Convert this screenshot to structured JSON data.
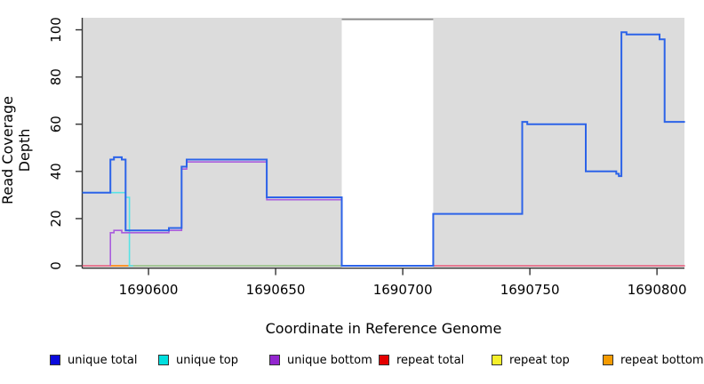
{
  "figure": {
    "background": "#ffffff",
    "panel_bg": "#dcdcdc",
    "axis_color": "#333333",
    "text_color": "#000000"
  },
  "chart_data": {
    "type": "line",
    "subtype": "step-coverage",
    "title": "",
    "xlabel": "Coordinate in Reference Genome",
    "ylabel": "Read Coverage Depth",
    "xlim": [
      1690574.1,
      1690810.8
    ],
    "ylim": [
      -0.75,
      105.1
    ],
    "xticks": [
      1690600,
      1690650,
      1690700,
      1690750,
      1690800
    ],
    "yticks": [
      0,
      20,
      40,
      60,
      80,
      100
    ],
    "grid": false,
    "legend_position": "bottom",
    "masked_region": {
      "x_start": 1690676,
      "x_end": 1690712,
      "fill": "#ffffff",
      "cap_value": 104.5,
      "cap_color": "#8c8c8c"
    },
    "series": [
      {
        "id": "repeat-total",
        "name": "repeat total",
        "color": "#e8587a",
        "width": 1.6,
        "points": [
          [
            1690574,
            0
          ],
          [
            1690811,
            0
          ]
        ]
      },
      {
        "id": "unique-top-repeat-top-overlap",
        "name": "unique top / repeat top overlap at zero",
        "color": "#8fd48f",
        "width": 1.6,
        "points": [
          [
            1690592,
            0
          ],
          [
            1690676,
            0
          ]
        ]
      },
      {
        "id": "repeat-bottom",
        "name": "repeat bottom",
        "color": "#ff9519",
        "width": 1.8,
        "points": [
          [
            1690585,
            0
          ],
          [
            1690592,
            0
          ]
        ]
      },
      {
        "id": "unique-top",
        "name": "unique top",
        "color": "#57e3e6",
        "width": 1.6,
        "points": [
          [
            1690574,
            31
          ],
          [
            1690591,
            31
          ],
          [
            1690591,
            29
          ],
          [
            1690592.5,
            29
          ],
          [
            1690592.5,
            0
          ],
          [
            1690594,
            0
          ]
        ]
      },
      {
        "id": "unique-bottom",
        "name": "unique bottom",
        "color": "#a95ddd",
        "width": 1.6,
        "points": [
          [
            1690585,
            0
          ],
          [
            1690585,
            14
          ],
          [
            1690586.4,
            14
          ],
          [
            1690586.4,
            15
          ],
          [
            1690589.5,
            15
          ],
          [
            1690589.5,
            14
          ],
          [
            1690608,
            14
          ],
          [
            1690608,
            15
          ],
          [
            1690613,
            15
          ],
          [
            1690613,
            41
          ],
          [
            1690615,
            41
          ],
          [
            1690615,
            44
          ],
          [
            1690646.5,
            44
          ],
          [
            1690646.5,
            28
          ],
          [
            1690676,
            28
          ],
          [
            1690676,
            0
          ],
          [
            1690712,
            0
          ]
        ]
      },
      {
        "id": "unique-total",
        "name": "unique total",
        "color": "#2c63e8",
        "width": 2,
        "points": [
          [
            1690574,
            31
          ],
          [
            1690585,
            31
          ],
          [
            1690585,
            45
          ],
          [
            1690586.4,
            45
          ],
          [
            1690586.4,
            46
          ],
          [
            1690589.5,
            46
          ],
          [
            1690589.5,
            45
          ],
          [
            1690591,
            45
          ],
          [
            1690591,
            15
          ],
          [
            1690608,
            15
          ],
          [
            1690608,
            16
          ],
          [
            1690613,
            16
          ],
          [
            1690613,
            42
          ],
          [
            1690615,
            42
          ],
          [
            1690615,
            45
          ],
          [
            1690646.5,
            45
          ],
          [
            1690646.5,
            29
          ],
          [
            1690676,
            29
          ],
          [
            1690676,
            0
          ],
          [
            1690712,
            0
          ],
          [
            1690712,
            22
          ],
          [
            1690747,
            22
          ],
          [
            1690747,
            61
          ],
          [
            1690749,
            61
          ],
          [
            1690749,
            60
          ],
          [
            1690772,
            60
          ],
          [
            1690772,
            40
          ],
          [
            1690784,
            40
          ],
          [
            1690784,
            39
          ],
          [
            1690785,
            39
          ],
          [
            1690785,
            38
          ],
          [
            1690786,
            38
          ],
          [
            1690786,
            99
          ],
          [
            1690788,
            99
          ],
          [
            1690788,
            98
          ],
          [
            1690801,
            98
          ],
          [
            1690801,
            96
          ],
          [
            1690803,
            96
          ],
          [
            1690803,
            61
          ],
          [
            1690811,
            61
          ]
        ]
      },
      {
        "id": "masked-region-cap",
        "name": "masked region cap line",
        "color": "#8c8c8c",
        "width": 2,
        "points": [
          [
            1690676,
            104.5
          ],
          [
            1690712,
            104.5
          ]
        ]
      }
    ]
  },
  "legend": {
    "items": [
      {
        "label": "unique total",
        "color": "#0b0bdd"
      },
      {
        "label": "unique top",
        "color": "#00dede"
      },
      {
        "label": "unique bottom",
        "color": "#9326cf"
      },
      {
        "label": "repeat total",
        "color": "#e50000"
      },
      {
        "label": "repeat top",
        "color": "#f5ef2a"
      },
      {
        "label": "repeat bottom",
        "color": "#f59b00"
      }
    ]
  }
}
